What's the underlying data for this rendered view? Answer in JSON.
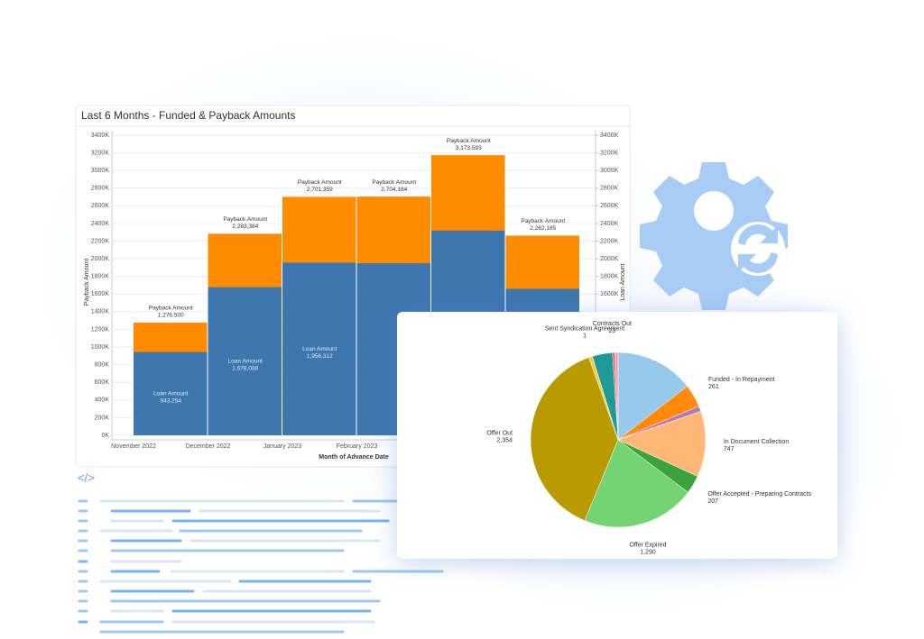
{
  "chart_data": [
    {
      "type": "bar",
      "title": "Last 6 Months - Funded & Payback Amounts",
      "categories": [
        "November 2022",
        "December 2022",
        "January 2023",
        "February 2023",
        null,
        null
      ],
      "x_label": "Month of Advance Date",
      "y_label": "Payback Amount",
      "y2_label": "Loan Amount",
      "series": [
        {
          "name": "Payback Amount",
          "color": "#ff8c00",
          "values": [
            1276500,
            2283384,
            2701359,
            2704184,
            3173593,
            2262185
          ],
          "value_labels": [
            "1,276,500",
            "2,283,384",
            "2,701,359",
            "2,704,184",
            "3,173,593",
            "2,262,185"
          ]
        },
        {
          "name": "Loan Amount",
          "color": "#3e77b0",
          "axis": "y2",
          "values": [
            943254,
            1678088,
            1956312,
            1949000,
            2320000,
            1660000
          ],
          "value_labels": [
            "943,254",
            "1,678,088",
            "1,956,312",
            null,
            null,
            null
          ]
        }
      ],
      "ylim": [
        0,
        3400000
      ],
      "y2lim": [
        0,
        3400000
      ],
      "yticks": [
        {
          "value": 0,
          "label": "0K"
        },
        {
          "value": 200000,
          "label": "200K"
        },
        {
          "value": 400000,
          "label": "400K"
        },
        {
          "value": 600000,
          "label": "600K"
        },
        {
          "value": 800000,
          "label": "800K"
        },
        {
          "value": 1000000,
          "label": "1000K"
        },
        {
          "value": 1200000,
          "label": "1200K"
        },
        {
          "value": 1400000,
          "label": "1400K"
        },
        {
          "value": 1600000,
          "label": "1600K"
        },
        {
          "value": 1800000,
          "label": "1800K"
        },
        {
          "value": 2000000,
          "label": "2000K"
        },
        {
          "value": 2200000,
          "label": "2200K"
        },
        {
          "value": 2400000,
          "label": "2400K"
        },
        {
          "value": 2600000,
          "label": "2600K"
        },
        {
          "value": 2800000,
          "label": "2800K"
        },
        {
          "value": 3000000,
          "label": "3000K"
        },
        {
          "value": 3200000,
          "label": "3200K"
        },
        {
          "value": 3400000,
          "label": "3400K"
        }
      ],
      "y2ticks": [
        {
          "value": 1600000,
          "label": "1600K"
        },
        {
          "value": 1800000,
          "label": "1800K"
        },
        {
          "value": 2000000,
          "label": "2000K"
        },
        {
          "value": 2200000,
          "label": "2200K"
        },
        {
          "value": 2400000,
          "label": "2400K"
        },
        {
          "value": 2600000,
          "label": "2600K"
        },
        {
          "value": 2800000,
          "label": "2800K"
        },
        {
          "value": 3000000,
          "label": "3000K"
        },
        {
          "value": 3200000,
          "label": "3200K"
        },
        {
          "value": 3400000,
          "label": "3400K"
        }
      ],
      "grid": true
    },
    {
      "type": "pie",
      "categories": [
        null,
        "Funded - In Repayment",
        null,
        "In Document Collection",
        "Offer Accepted - Preparing Contracts",
        "Offer Expired",
        "Offer Out",
        null,
        "Sent Syndication Agreement",
        null,
        "Contracts Out",
        null
      ],
      "values": [
        890,
        261,
        60,
        747,
        207,
        1290,
        2354,
        40,
        1,
        230,
        23,
        40
      ],
      "value_labels": [
        null,
        "261",
        null,
        "747",
        "207",
        "1,290",
        "2,354",
        null,
        "1",
        null,
        "23",
        null
      ],
      "colors": [
        "#97c9ec",
        "#ff8a0c",
        "#b07ab6",
        "#ffb777",
        "#3ca23c",
        "#74d474",
        "#b99a00",
        "#f5cd3c",
        "#8dd3cb",
        "#1f9a98",
        "#e84a5a",
        "#f7a1a8"
      ]
    }
  ]
}
